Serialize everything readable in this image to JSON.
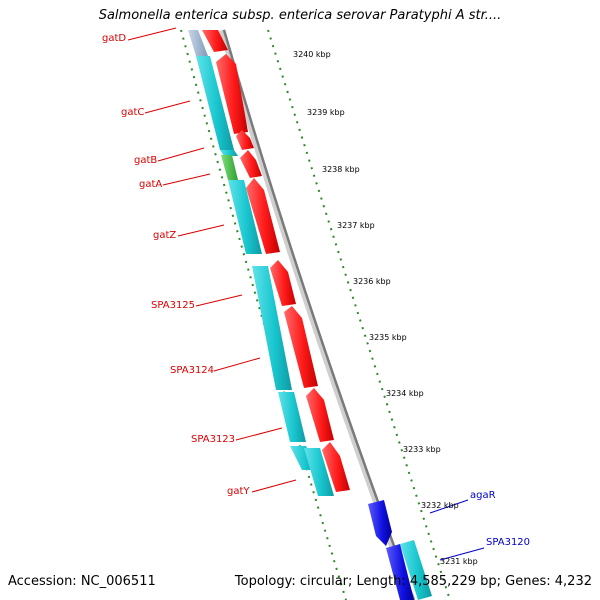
{
  "title": "Salmonella enterica subsp. enterica serovar Paratyphi A str....",
  "accession": "Accession: NC_006511",
  "summary": "Topology: circular; Length: 4,585,229 bp; Genes: 4,232",
  "colors": {
    "forward_cds": "#ff1a1a",
    "reverse_cds": "#19c6cf",
    "green_cds": "#33bb33",
    "blue_cds": "#1010e0",
    "red_label": "#dd0000",
    "blue_label": "#0000cc",
    "tick": "#2a8a2a",
    "backbone": "#888888"
  },
  "gene_labels": [
    {
      "text": "gatD",
      "color": "red"
    },
    {
      "text": "gatC",
      "color": "red"
    },
    {
      "text": "gatB",
      "color": "red"
    },
    {
      "text": "gatA",
      "color": "red"
    },
    {
      "text": "gatZ",
      "color": "red"
    },
    {
      "text": "SPA3125",
      "color": "red"
    },
    {
      "text": "SPA3124",
      "color": "red"
    },
    {
      "text": "SPA3123",
      "color": "red"
    },
    {
      "text": "gatY",
      "color": "red"
    },
    {
      "text": "agaR",
      "color": "blue"
    },
    {
      "text": "SPA3120",
      "color": "blue"
    }
  ],
  "scale_ticks": [
    "3240 kbp",
    "3239 kbp",
    "3238 kbp",
    "3237 kbp",
    "3236 kbp",
    "3235 kbp",
    "3234 kbp",
    "3233 kbp",
    "3232 kbp",
    "3231 kbp"
  ]
}
